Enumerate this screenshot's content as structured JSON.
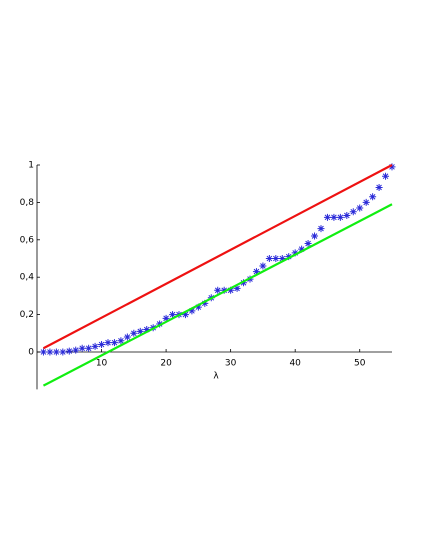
{
  "chart_data": {
    "type": "scatter",
    "xlabel": "λ",
    "xlim": [
      0,
      55
    ],
    "ylim": [
      -0.2,
      1
    ],
    "xticks": [
      10,
      20,
      30,
      40,
      50
    ],
    "yticks": [
      0,
      {
        "value": 0.2,
        "label": "0,2"
      },
      {
        "value": 0.4,
        "label": "0,4"
      },
      {
        "value": 0.6,
        "label": "0,6"
      },
      {
        "value": 0.8,
        "label": "0,8"
      },
      1
    ],
    "series": [
      {
        "color": "#2a2ad8",
        "marker": "star",
        "x": [
          1,
          2,
          3,
          4,
          5,
          6,
          7,
          8,
          9,
          10,
          11,
          12,
          13,
          14,
          15,
          16,
          17,
          18,
          19,
          20,
          21,
          22,
          23,
          24,
          25,
          26,
          27,
          28,
          29,
          30,
          31,
          32,
          33,
          34,
          35,
          36,
          37,
          38,
          39,
          40,
          41,
          42,
          43,
          44,
          45,
          46,
          47,
          48,
          49,
          50,
          51,
          52,
          53,
          54,
          55
        ],
        "values": [
          0,
          0,
          0,
          0,
          0.005,
          0.01,
          0.02,
          0.02,
          0.03,
          0.04,
          0.05,
          0.05,
          0.06,
          0.08,
          0.1,
          0.11,
          0.12,
          0.13,
          0.15,
          0.18,
          0.2,
          0.2,
          0.2,
          0.22,
          0.24,
          0.26,
          0.29,
          0.33,
          0.33,
          0.33,
          0.34,
          0.37,
          0.39,
          0.43,
          0.46,
          0.5,
          0.5,
          0.5,
          0.51,
          0.53,
          0.55,
          0.58,
          0.62,
          0.66,
          0.72,
          0.72,
          0.72,
          0.73,
          0.75,
          0.77,
          0.8,
          0.83,
          0.88,
          0.94,
          0.99
        ]
      },
      {
        "color": "#ee1111",
        "marker": "line",
        "x": [
          1,
          55
        ],
        "values": [
          0.02,
          1.0
        ]
      },
      {
        "color": "#11ee11",
        "marker": "line",
        "x": [
          1,
          55
        ],
        "values": [
          -0.18,
          0.79
        ]
      }
    ]
  }
}
